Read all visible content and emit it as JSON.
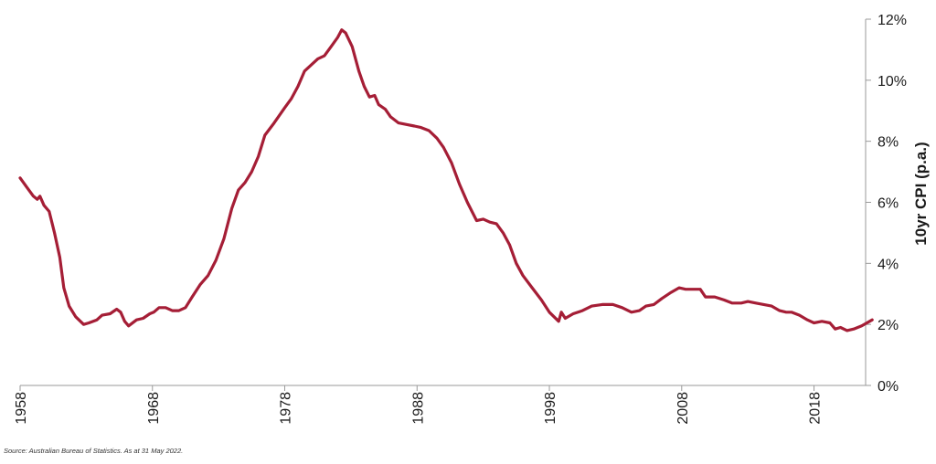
{
  "source_note": "Source: Australian Bureau of Statistics. As at 31 May 2022.",
  "colors": {
    "line": "#A51E36",
    "axis": "#9a9a9a",
    "text": "#1a1a1a"
  },
  "chart_data": {
    "type": "line",
    "title": "",
    "xlabel": "",
    "ylabel": "10yr CPI (p.a.)",
    "y_axis_side": "right",
    "grid": false,
    "legend": "none",
    "xlim": [
      1958,
      2022.4
    ],
    "ylim": [
      0,
      12
    ],
    "x_ticks": [
      "1958",
      "1968",
      "1978",
      "1988",
      "1998",
      "2008",
      "2018"
    ],
    "y_ticks": [
      "0%",
      "2%",
      "4%",
      "6%",
      "8%",
      "10%",
      "12%"
    ],
    "series": [
      {
        "values": [
          [
            1958.0,
            6.8
          ],
          [
            1958.5,
            6.5
          ],
          [
            1959.0,
            6.2
          ],
          [
            1959.3,
            6.1
          ],
          [
            1959.5,
            6.2
          ],
          [
            1959.8,
            5.9
          ],
          [
            1960.2,
            5.7
          ],
          [
            1960.6,
            5.0
          ],
          [
            1961.0,
            4.2
          ],
          [
            1961.3,
            3.2
          ],
          [
            1961.7,
            2.6
          ],
          [
            1962.2,
            2.25
          ],
          [
            1962.8,
            2.0
          ],
          [
            1963.2,
            2.05
          ],
          [
            1963.8,
            2.15
          ],
          [
            1964.2,
            2.3
          ],
          [
            1964.8,
            2.35
          ],
          [
            1965.3,
            2.5
          ],
          [
            1965.6,
            2.4
          ],
          [
            1965.9,
            2.1
          ],
          [
            1966.2,
            1.95
          ],
          [
            1966.8,
            2.15
          ],
          [
            1967.3,
            2.2
          ],
          [
            1967.8,
            2.35
          ],
          [
            1968.1,
            2.4
          ],
          [
            1968.5,
            2.55
          ],
          [
            1969.0,
            2.55
          ],
          [
            1969.5,
            2.45
          ],
          [
            1970.0,
            2.45
          ],
          [
            1970.5,
            2.55
          ],
          [
            1971.0,
            2.9
          ],
          [
            1971.6,
            3.3
          ],
          [
            1972.2,
            3.6
          ],
          [
            1972.8,
            4.1
          ],
          [
            1973.4,
            4.8
          ],
          [
            1974.0,
            5.8
          ],
          [
            1974.5,
            6.4
          ],
          [
            1975.0,
            6.65
          ],
          [
            1975.5,
            7.0
          ],
          [
            1976.0,
            7.5
          ],
          [
            1976.5,
            8.2
          ],
          [
            1977.2,
            8.6
          ],
          [
            1978.0,
            9.1
          ],
          [
            1978.5,
            9.4
          ],
          [
            1979.0,
            9.8
          ],
          [
            1979.5,
            10.3
          ],
          [
            1980.0,
            10.5
          ],
          [
            1980.5,
            10.7
          ],
          [
            1981.0,
            10.8
          ],
          [
            1981.5,
            11.1
          ],
          [
            1982.0,
            11.4
          ],
          [
            1982.3,
            11.65
          ],
          [
            1982.6,
            11.55
          ],
          [
            1983.1,
            11.1
          ],
          [
            1983.6,
            10.3
          ],
          [
            1984.0,
            9.8
          ],
          [
            1984.4,
            9.45
          ],
          [
            1984.8,
            9.5
          ],
          [
            1985.1,
            9.2
          ],
          [
            1985.6,
            9.05
          ],
          [
            1986.0,
            8.8
          ],
          [
            1986.6,
            8.6
          ],
          [
            1987.2,
            8.55
          ],
          [
            1987.8,
            8.5
          ],
          [
            1988.3,
            8.45
          ],
          [
            1988.9,
            8.35
          ],
          [
            1989.5,
            8.1
          ],
          [
            1990.0,
            7.8
          ],
          [
            1990.6,
            7.3
          ],
          [
            1991.2,
            6.6
          ],
          [
            1991.8,
            6.0
          ],
          [
            1992.5,
            5.4
          ],
          [
            1993.0,
            5.45
          ],
          [
            1993.5,
            5.35
          ],
          [
            1994.0,
            5.3
          ],
          [
            1994.5,
            5.0
          ],
          [
            1995.0,
            4.6
          ],
          [
            1995.5,
            4.0
          ],
          [
            1996.0,
            3.6
          ],
          [
            1996.7,
            3.2
          ],
          [
            1997.4,
            2.8
          ],
          [
            1998.0,
            2.4
          ],
          [
            1998.7,
            2.1
          ],
          [
            1998.9,
            2.4
          ],
          [
            1999.2,
            2.2
          ],
          [
            1999.8,
            2.35
          ],
          [
            2000.5,
            2.45
          ],
          [
            2001.2,
            2.6
          ],
          [
            2002.0,
            2.65
          ],
          [
            2002.8,
            2.65
          ],
          [
            2003.5,
            2.55
          ],
          [
            2004.2,
            2.4
          ],
          [
            2004.8,
            2.45
          ],
          [
            2005.3,
            2.6
          ],
          [
            2005.9,
            2.65
          ],
          [
            2006.5,
            2.85
          ],
          [
            2007.2,
            3.05
          ],
          [
            2007.8,
            3.2
          ],
          [
            2008.3,
            3.15
          ],
          [
            2008.9,
            3.15
          ],
          [
            2009.4,
            3.15
          ],
          [
            2009.8,
            2.9
          ],
          [
            2010.5,
            2.9
          ],
          [
            2011.2,
            2.8
          ],
          [
            2011.8,
            2.7
          ],
          [
            2012.5,
            2.7
          ],
          [
            2013.0,
            2.75
          ],
          [
            2013.6,
            2.7
          ],
          [
            2014.2,
            2.65
          ],
          [
            2014.8,
            2.6
          ],
          [
            2015.4,
            2.45
          ],
          [
            2015.9,
            2.4
          ],
          [
            2016.3,
            2.4
          ],
          [
            2016.9,
            2.3
          ],
          [
            2017.5,
            2.15
          ],
          [
            2018.0,
            2.05
          ],
          [
            2018.6,
            2.1
          ],
          [
            2019.2,
            2.05
          ],
          [
            2019.6,
            1.85
          ],
          [
            2020.0,
            1.9
          ],
          [
            2020.5,
            1.8
          ],
          [
            2021.0,
            1.85
          ],
          [
            2021.6,
            1.95
          ],
          [
            2022.0,
            2.05
          ],
          [
            2022.4,
            2.15
          ]
        ]
      }
    ]
  }
}
